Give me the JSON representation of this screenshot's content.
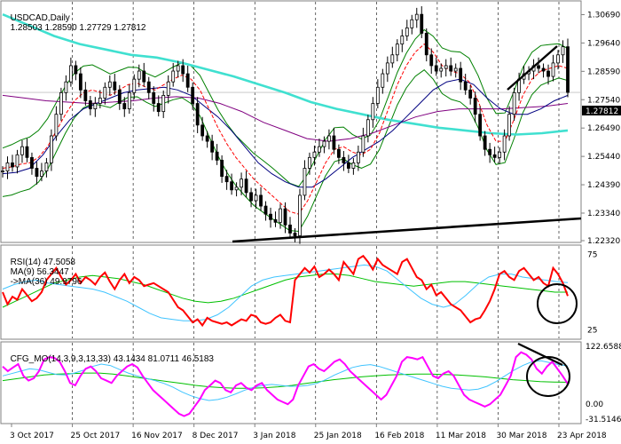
{
  "main_panel": {
    "title": "USDCAD,Daily",
    "ohlc_readout": "1.28503 1.28590 1.27729 1.27812",
    "current_price_label": "1.27812"
  },
  "rsi_panel": {
    "title": "RSI(14) 47.5058",
    "ma_label": "MA(9) 56.3447",
    "ma36_label": "->MA(36) 49.9796"
  },
  "cfg_panel": {
    "title": "CFG_MO(14,3,9,3,13,33) 43.1434 81.0711 46.5183"
  },
  "colors": {
    "candles": "#000000",
    "ma_fast": "#ff0000",
    "ma_mid": "#000080",
    "ma_slow": "#800080",
    "ma_long": "#40e0d0",
    "bollinger": "#008000",
    "rsi_line": "#ff0000",
    "rsi_ma9": "#40c4ff",
    "rsi_ma36": "#00c000",
    "cfg_main": "#ff00ff",
    "cfg_sig1": "#40c4ff",
    "cfg_sig2": "#00c000",
    "annotation": "#000000"
  },
  "chart_data": [
    {
      "type": "candlestick",
      "title": "USDCAD,Daily",
      "ylim": [
        1.2232,
        1.311
      ],
      "y_ticks": [
        "1.30690",
        "1.29640",
        "1.28590",
        "1.27540",
        "1.26490",
        "1.25440",
        "1.24390",
        "1.23340",
        "1.22320"
      ],
      "x_ticks": [
        "3 Oct 2017",
        "25 Oct 2017",
        "16 Nov 2017",
        "8 Dec 2017",
        "3 Jan 2018",
        "25 Jan 2018",
        "16 Feb 2018",
        "11 Mar 2018",
        "30 Mar 2018",
        "23 Apr 2018"
      ],
      "series": [
        {
          "name": "Close",
          "values": [
            1.249,
            1.252,
            1.2505,
            1.255,
            1.258,
            1.254,
            1.25,
            1.247,
            1.249,
            1.252,
            1.262,
            1.27,
            1.278,
            1.282,
            1.288,
            1.285,
            1.279,
            1.275,
            1.272,
            1.274,
            1.276,
            1.28,
            1.282,
            1.279,
            1.274,
            1.272,
            1.278,
            1.283,
            1.286,
            1.282,
            1.278,
            1.274,
            1.271,
            1.277,
            1.282,
            1.286,
            1.288,
            1.285,
            1.28,
            1.274,
            1.266,
            1.262,
            1.26,
            1.256,
            1.253,
            1.247,
            1.245,
            1.242,
            1.243,
            1.246,
            1.241,
            1.238,
            1.24,
            1.236,
            1.233,
            1.231,
            1.23,
            1.235,
            1.229,
            1.226,
            1.225,
            1.24,
            1.25,
            1.254,
            1.256,
            1.258,
            1.26,
            1.262,
            1.257,
            1.254,
            1.252,
            1.25,
            1.252,
            1.256,
            1.262,
            1.268,
            1.274,
            1.28,
            1.285,
            1.289,
            1.292,
            1.296,
            1.299,
            1.302,
            1.305,
            1.307,
            1.3,
            1.292,
            1.288,
            1.286,
            1.287,
            1.288,
            1.286,
            1.287,
            1.282,
            1.279,
            1.276,
            1.27,
            1.262,
            1.257,
            1.255,
            1.254,
            1.256,
            1.262,
            1.27,
            1.278,
            1.283,
            1.285,
            1.286,
            1.288,
            1.287,
            1.286,
            1.284,
            1.289,
            1.292,
            1.295,
            1.2781
          ]
        },
        {
          "name": "MA fast",
          "values": [
            1.25,
            1.2505,
            1.2515,
            1.252,
            1.254,
            1.258,
            1.264,
            1.27,
            1.275,
            1.278,
            1.279,
            1.278,
            1.277,
            1.279,
            1.281,
            1.2815,
            1.28,
            1.279,
            1.281,
            1.283,
            1.2845,
            1.283,
            1.279,
            1.272,
            1.265,
            1.259,
            1.254,
            1.25,
            1.246,
            1.243,
            1.24,
            1.237,
            1.234,
            1.233,
            1.238,
            1.245,
            1.252,
            1.257,
            1.258,
            1.256,
            1.255,
            1.257,
            1.263,
            1.272,
            1.281,
            1.288,
            1.293,
            1.296,
            1.293,
            1.288,
            1.286,
            1.285,
            1.282,
            1.275,
            1.266,
            1.26,
            1.26,
            1.268,
            1.277,
            1.283,
            1.286,
            1.287,
            1.288,
            1.287
          ]
        },
        {
          "name": "MA mid",
          "values": [
            1.248,
            1.2485,
            1.25,
            1.255,
            1.262,
            1.268,
            1.272,
            1.274,
            1.276,
            1.278,
            1.279,
            1.2795,
            1.28,
            1.279,
            1.277,
            1.273,
            1.269,
            1.264,
            1.258,
            1.252,
            1.248,
            1.245,
            1.243,
            1.243,
            1.246,
            1.25,
            1.254,
            1.257,
            1.26,
            1.264,
            1.269,
            1.274,
            1.279,
            1.282,
            1.283,
            1.281,
            1.276,
            1.272,
            1.27,
            1.27,
            1.272,
            1.275,
            1.277
          ]
        },
        {
          "name": "MA slow",
          "values": [
            1.277,
            1.276,
            1.275,
            1.2745,
            1.274,
            1.2745,
            1.275,
            1.276,
            1.2765,
            1.276,
            1.274,
            1.271,
            1.267,
            1.264,
            1.261,
            1.26,
            1.261,
            1.263,
            1.266,
            1.269,
            1.271,
            1.272,
            1.272,
            1.272,
            1.2725,
            1.273,
            1.274
          ]
        },
        {
          "name": "MA long",
          "values": [
            1.307,
            1.303,
            1.299,
            1.296,
            1.294,
            1.292,
            1.291,
            1.289,
            1.2865,
            1.284,
            1.281,
            1.278,
            1.2745,
            1.272,
            1.27,
            1.268,
            1.2665,
            1.265,
            1.264,
            1.263,
            1.2625,
            1.263,
            1.264
          ]
        }
      ],
      "annotations": [
        "upper-trendline",
        "lower-trendline",
        "horizontal-price-line"
      ]
    },
    {
      "type": "line",
      "title": "RSI(14)",
      "ylim": [
        20,
        80
      ],
      "y_ticks": [
        "75",
        "25"
      ],
      "series": [
        {
          "name": "RSI(14)",
          "values": [
            50,
            42,
            47,
            45,
            52,
            48,
            44,
            46,
            50,
            58,
            62,
            66,
            60,
            55,
            58,
            62,
            56,
            60,
            58,
            55,
            60,
            63,
            57,
            52,
            58,
            62,
            56,
            60,
            58,
            54,
            55,
            56,
            54,
            52,
            50,
            45,
            40,
            38,
            34,
            30,
            32,
            28,
            33,
            31,
            30,
            29,
            30,
            28,
            30,
            32,
            31,
            35,
            34,
            30,
            29,
            30,
            33,
            35,
            31,
            30,
            58,
            62,
            66,
            63,
            67,
            60,
            62,
            65,
            62,
            58,
            70,
            66,
            62,
            72,
            74,
            70,
            65,
            72,
            68,
            66,
            64,
            62,
            70,
            72,
            66,
            60,
            58,
            52,
            55,
            48,
            50,
            46,
            42,
            40,
            38,
            34,
            30,
            32,
            33,
            38,
            44,
            52,
            62,
            64,
            60,
            58,
            64,
            66,
            62,
            58,
            60,
            56,
            54,
            66,
            62,
            56,
            47.5
          ]
        },
        {
          "name": "MA(9)",
          "values": [
            52,
            55,
            57,
            58,
            56,
            55,
            54,
            53,
            52,
            50,
            47,
            44,
            40,
            36,
            33,
            32,
            31,
            31,
            32,
            35,
            40,
            47,
            54,
            58,
            60,
            61,
            62,
            63,
            64,
            65,
            66,
            67,
            68,
            67,
            64,
            58,
            52,
            46,
            42,
            40,
            42,
            48,
            55,
            60,
            62,
            62,
            60,
            59,
            58,
            57,
            56.3
          ]
        },
        {
          "name": "MA(36)",
          "values": [
            40,
            44,
            48,
            52,
            56,
            58,
            60,
            61,
            60,
            59,
            57,
            55,
            52,
            49,
            46,
            44,
            43,
            44,
            46,
            49,
            52,
            55,
            58,
            60,
            61,
            62,
            62,
            61,
            59,
            57,
            56,
            55,
            54,
            55,
            56,
            57,
            57,
            56,
            55,
            54,
            53,
            52,
            51,
            50,
            50
          ]
        }
      ]
    },
    {
      "type": "line",
      "title": "CFG_MO(14,3,9,3,13,33)",
      "ylim": [
        -31.5146,
        122.6588
      ],
      "y_ticks": [
        "122.6588",
        "0.00",
        "-31.5146"
      ],
      "series": [
        {
          "name": "CFG_MO",
          "values": [
            80,
            70,
            78,
            85,
            60,
            50,
            55,
            70,
            95,
            100,
            98,
            90,
            70,
            45,
            40,
            60,
            75,
            80,
            70,
            55,
            50,
            45,
            60,
            70,
            80,
            85,
            78,
            60,
            45,
            30,
            20,
            10,
            0,
            -10,
            -20,
            -25,
            -20,
            -5,
            10,
            30,
            40,
            50,
            45,
            30,
            25,
            40,
            45,
            35,
            30,
            40,
            45,
            30,
            20,
            10,
            5,
            0,
            10,
            40,
            60,
            80,
            85,
            75,
            70,
            80,
            90,
            95,
            85,
            70,
            60,
            50,
            40,
            30,
            20,
            10,
            20,
            40,
            60,
            90,
            100,
            98,
            95,
            100,
            80,
            60,
            55,
            65,
            70,
            60,
            40,
            20,
            10,
            5,
            0,
            -5,
            0,
            10,
            20,
            40,
            60,
            100,
            110,
            105,
            95,
            75,
            65,
            80,
            90,
            75,
            60,
            43.1
          ]
        },
        {
          "name": "Signal 1",
          "values": [
            60,
            65,
            70,
            75,
            73,
            68,
            63,
            62,
            66,
            72,
            80,
            85,
            82,
            74,
            66,
            60,
            55,
            50,
            44,
            36,
            26,
            18,
            12,
            8,
            10,
            15,
            22,
            30,
            36,
            40,
            42,
            40,
            38,
            38,
            40,
            44,
            52,
            62,
            70,
            78,
            82,
            84,
            80,
            74,
            68,
            62,
            56,
            50,
            44,
            38,
            34,
            32,
            30,
            32,
            38,
            48,
            60,
            72,
            82,
            90,
            92,
            88,
            84,
            81
          ]
        },
        {
          "name": "Signal 2",
          "values": [
            50,
            54,
            58,
            62,
            64,
            65,
            66,
            66,
            64,
            60,
            56,
            52,
            48,
            44,
            40,
            37,
            35,
            34,
            34,
            35,
            37,
            40,
            44,
            48,
            52,
            55,
            58,
            60,
            62,
            63,
            64,
            64,
            63,
            62,
            60,
            58,
            55,
            52,
            50,
            48,
            47,
            46.5
          ]
        }
      ]
    }
  ]
}
